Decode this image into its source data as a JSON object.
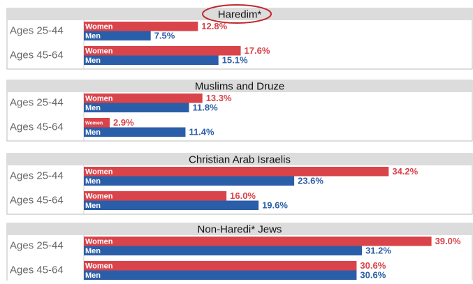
{
  "chart_data": [
    {
      "type": "bar",
      "title": "Haredim*",
      "categories": [
        "Ages 25-44",
        "Ages 45-64"
      ],
      "xlim": [
        0,
        43.5
      ],
      "series": [
        {
          "name": "Women",
          "color": "#d9434a",
          "values": [
            12.8,
            17.6
          ],
          "value_labels": [
            "12.8%",
            "17.6%"
          ]
        },
        {
          "name": "Men",
          "color": "#2b5ea8",
          "values": [
            7.5,
            15.1
          ],
          "value_labels": [
            "7.5%",
            "15.1%"
          ]
        }
      ]
    },
    {
      "type": "bar",
      "title": "Muslims and Druze",
      "categories": [
        "Ages 25-44",
        "Ages 45-64"
      ],
      "xlim": [
        0,
        43.5
      ],
      "series": [
        {
          "name": "Women",
          "color": "#d9434a",
          "values": [
            13.3,
            2.9
          ],
          "value_labels": [
            "13.3%",
            "2.9%"
          ]
        },
        {
          "name": "Men",
          "color": "#2b5ea8",
          "values": [
            11.8,
            11.4
          ],
          "value_labels": [
            "11.8%",
            "11.4%"
          ]
        }
      ]
    },
    {
      "type": "bar",
      "title": "Christian Arab Israelis",
      "categories": [
        "Ages 25-44",
        "Ages 45-64"
      ],
      "xlim": [
        0,
        43.5
      ],
      "series": [
        {
          "name": "Women",
          "color": "#d9434a",
          "values": [
            34.2,
            16.0
          ],
          "value_labels": [
            "34.2%",
            "16.0%"
          ]
        },
        {
          "name": "Men",
          "color": "#2b5ea8",
          "values": [
            23.6,
            19.6
          ],
          "value_labels": [
            "23.6%",
            "19.6%"
          ]
        }
      ]
    },
    {
      "type": "bar",
      "title": "Non-Haredi* Jews",
      "categories": [
        "Ages 25-44",
        "Ages 45-64"
      ],
      "xlim": [
        0,
        43.5
      ],
      "series": [
        {
          "name": "Women",
          "color": "#d9434a",
          "values": [
            39.0,
            30.6
          ],
          "value_labels": [
            "39.0%",
            "30.6%"
          ]
        },
        {
          "name": "Men",
          "color": "#2b5ea8",
          "values": [
            31.2,
            30.6
          ],
          "value_labels": [
            "31.2%",
            "30.6%"
          ]
        }
      ]
    }
  ]
}
